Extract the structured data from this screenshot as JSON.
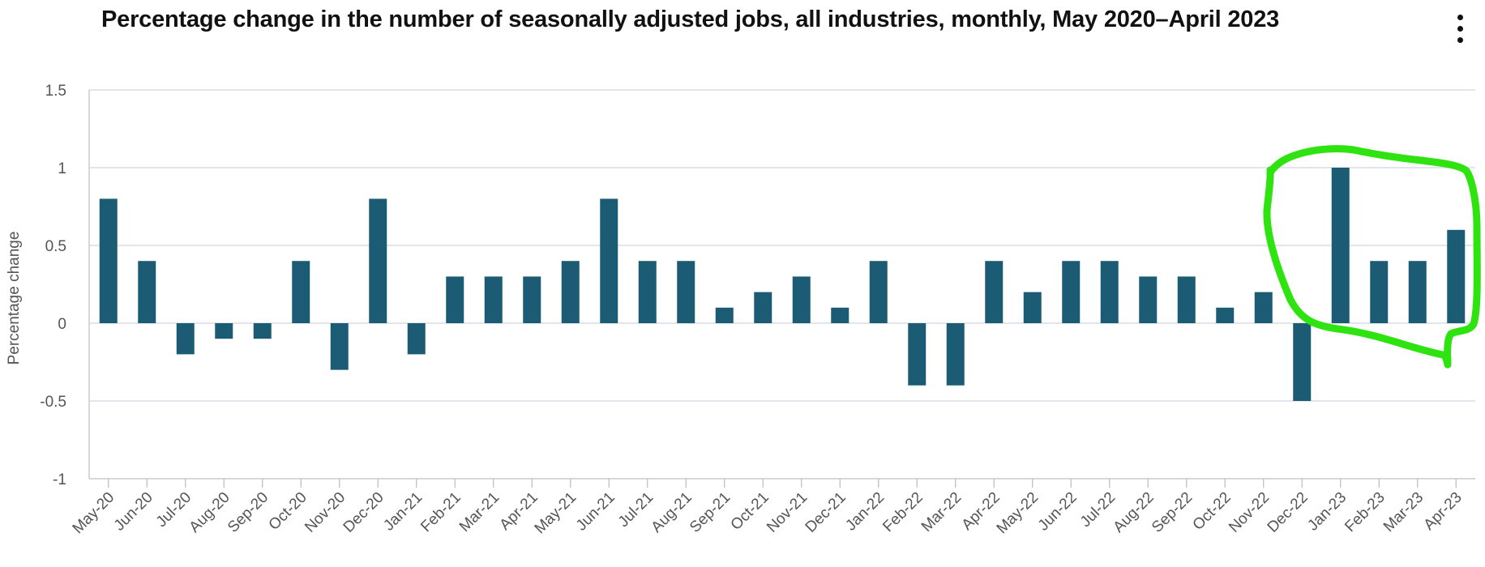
{
  "header": {
    "title": "Percentage change in the number of seasonally adjusted jobs, all industries, monthly, May 2020–April 2023",
    "menu_icon": "vertical-ellipsis-icon"
  },
  "colors": {
    "bar": "#1b5b73",
    "highlight": "#2ee310",
    "grid": "#d9dee6"
  },
  "chart_data": {
    "type": "bar",
    "title": "Percentage change in the number of seasonally adjusted jobs, all industries, monthly, May 2020–April 2023",
    "xlabel": "",
    "ylabel": "Percentage change",
    "ylim": [
      -1,
      1.5
    ],
    "yticks": [
      1.5,
      1,
      0.5,
      0,
      -0.5,
      -1
    ],
    "ytick_labels": [
      "1.5",
      "1",
      "0.5",
      "0",
      "-0.5",
      "-1"
    ],
    "grid": true,
    "categories": [
      "May-20",
      "Jun-20",
      "Jul-20",
      "Aug-20",
      "Sep-20",
      "Oct-20",
      "Nov-20",
      "Dec-20",
      "Jan-21",
      "Feb-21",
      "Mar-21",
      "Apr-21",
      "May-21",
      "Jun-21",
      "Jul-21",
      "Aug-21",
      "Sep-21",
      "Oct-21",
      "Nov-21",
      "Dec-21",
      "Jan-22",
      "Feb-22",
      "Mar-22",
      "Apr-22",
      "May-22",
      "Jun-22",
      "Jul-22",
      "Aug-22",
      "Sep-22",
      "Oct-22",
      "Nov-22",
      "Dec-22",
      "Jan-23",
      "Feb-23",
      "Mar-23",
      "Apr-23"
    ],
    "values": [
      0.8,
      0.4,
      -0.2,
      -0.1,
      -0.1,
      0.4,
      -0.3,
      0.8,
      -0.2,
      0.3,
      0.3,
      0.3,
      0.4,
      0.8,
      0.4,
      0.4,
      0.1,
      0.2,
      0.3,
      0.1,
      0.4,
      -0.4,
      -0.4,
      0.4,
      0.2,
      0.4,
      0.4,
      0.3,
      0.3,
      0.1,
      0.2,
      -0.5,
      1.0,
      0.4,
      0.4,
      0.6
    ],
    "annotations": [
      {
        "type": "hand-drawn-highlight",
        "color": "#2ee310",
        "covers_categories": [
          "Dec-22",
          "Jan-23",
          "Feb-23",
          "Mar-23",
          "Apr-23"
        ]
      }
    ]
  }
}
